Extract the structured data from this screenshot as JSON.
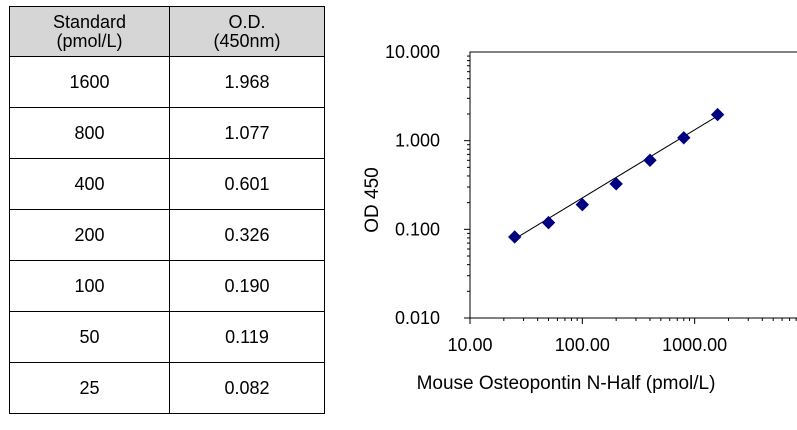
{
  "table": {
    "headers": [
      [
        "Standard",
        "(pmol/L)"
      ],
      [
        "O.D.",
        "(450nm)"
      ]
    ],
    "rows": [
      [
        "1600",
        "1.968"
      ],
      [
        "800",
        "1.077"
      ],
      [
        "400",
        "0.601"
      ],
      [
        "200",
        "0.326"
      ],
      [
        "100",
        "0.190"
      ],
      [
        "50",
        "0.119"
      ],
      [
        "25",
        "0.082"
      ]
    ]
  },
  "chart_data": {
    "type": "scatter",
    "title": "",
    "xlabel": "Mouse Osteopontin N-Half (pmol/L)",
    "ylabel": "OD 450",
    "x_scale": "log",
    "y_scale": "log",
    "xlim": [
      10,
      10000
    ],
    "ylim": [
      0.01,
      10
    ],
    "x_tick_labels": [
      "10.00",
      "100.00",
      "1000.00"
    ],
    "y_tick_labels": [
      "10.000",
      "1.000",
      "0.100",
      "0.010"
    ],
    "grid": false,
    "marker_color": "#000080",
    "series": [
      {
        "x": [
          25,
          50,
          100,
          200,
          400,
          800,
          1600
        ],
        "y": [
          0.082,
          0.119,
          0.19,
          0.326,
          0.601,
          1.077,
          1.968
        ]
      }
    ],
    "trendline": {
      "x": [
        25,
        1600
      ],
      "y": [
        0.078,
        1.9
      ]
    }
  }
}
